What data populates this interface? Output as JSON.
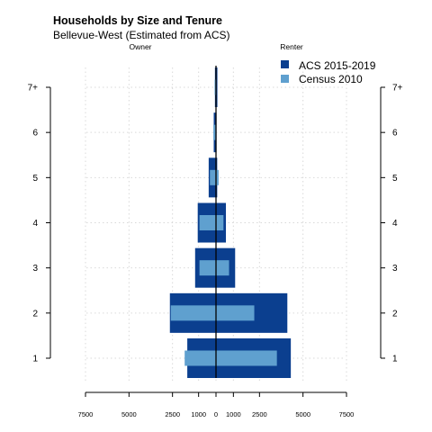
{
  "chart_data": {
    "type": "bar",
    "orientation": "horizontal-butterfly",
    "title": "Households by Size and Tenure",
    "subtitle": "Bellevue-West (Estimated from ACS)",
    "left_label": "Owner",
    "right_label": "Renter",
    "categories": [
      "1",
      "2",
      "3",
      "4",
      "5",
      "6",
      "7+"
    ],
    "series": [
      {
        "name": "ACS 2015-2019",
        "color": "#0b3f8f",
        "owner": [
          1650,
          2650,
          1200,
          1050,
          420,
          130,
          60
        ],
        "renter": [
          4300,
          4100,
          1100,
          570,
          70,
          30,
          80
        ]
      },
      {
        "name": "Census 2010",
        "color": "#5fa0cf",
        "owner": [
          1800,
          2600,
          950,
          950,
          350,
          150,
          80
        ],
        "renter": [
          3500,
          2200,
          750,
          430,
          150,
          20,
          30
        ]
      }
    ],
    "xlim": [
      -7500,
      7500
    ],
    "x_tick_values": [
      -7500,
      -5000,
      -2500,
      -1000,
      0,
      1000,
      2500,
      5000,
      7500
    ],
    "x_tick_labels": [
      "7500",
      "5000",
      "2500",
      "1000",
      "0",
      "1000",
      "2500",
      "5000",
      "7500"
    ],
    "grid": true,
    "legend_position": "top-right"
  }
}
